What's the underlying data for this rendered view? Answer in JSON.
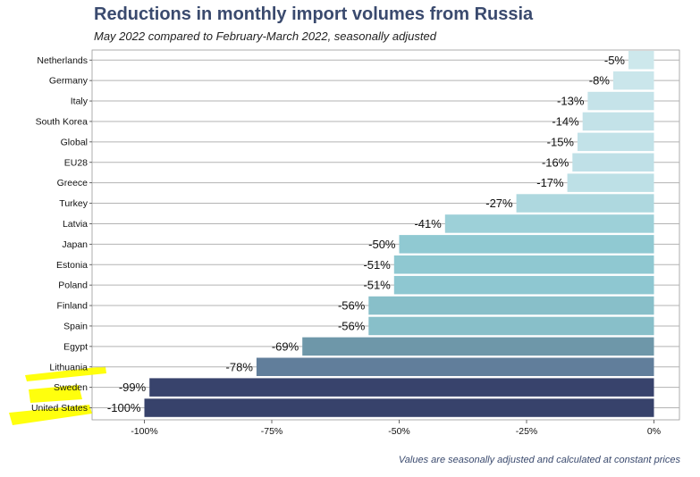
{
  "chart_data": {
    "type": "bar",
    "orientation": "horizontal",
    "title": "Reductions in monthly import volumes from Russia",
    "subtitle": "May 2022 compared to February-March 2022, seasonally adjusted",
    "caption": "Values are seasonally adjusted and calculated at constant prices",
    "categories": [
      "Netherlands",
      "Germany",
      "Italy",
      "South Korea",
      "Global",
      "EU28",
      "Greece",
      "Turkey",
      "Latvia",
      "Japan",
      "Estonia",
      "Poland",
      "Finland",
      "Spain",
      "Egypt",
      "Lithuania",
      "Sweden",
      "United States"
    ],
    "values": [
      -5,
      -8,
      -13,
      -14,
      -15,
      -16,
      -17,
      -27,
      -41,
      -50,
      -51,
      -51,
      -56,
      -56,
      -69,
      -78,
      -99,
      -100
    ],
    "data_labels": [
      "-5%",
      "-8%",
      "-13%",
      "-14%",
      "-15%",
      "-16%",
      "-17%",
      "-27%",
      "-41%",
      "-50%",
      "-51%",
      "-51%",
      "-56%",
      "-56%",
      "-69%",
      "-78%",
      "-99%",
      "-100%"
    ],
    "colors": [
      "#cde8ec",
      "#cae6eb",
      "#c5e3e9",
      "#c3e2e8",
      "#c2e2e8",
      "#bfe0e7",
      "#bde0e6",
      "#aed8df",
      "#9dd0d8",
      "#90c9d2",
      "#8fc8d1",
      "#8ec7d1",
      "#88bfc9",
      "#88bfc9",
      "#6e97a9",
      "#617e9b",
      "#38436c",
      "#37426b"
    ],
    "highlighted": [
      "Lithuania",
      "Sweden",
      "United States"
    ],
    "highlight_color": "#ffff00",
    "xlim": [
      -110,
      0
    ],
    "x_ticks": [
      -100,
      -75,
      -50,
      -25,
      0
    ],
    "x_tick_labels": [
      "-100%",
      "-75%",
      "-50%",
      "-25%",
      "0%"
    ],
    "xlabel": "",
    "ylabel": "",
    "grid": true
  }
}
